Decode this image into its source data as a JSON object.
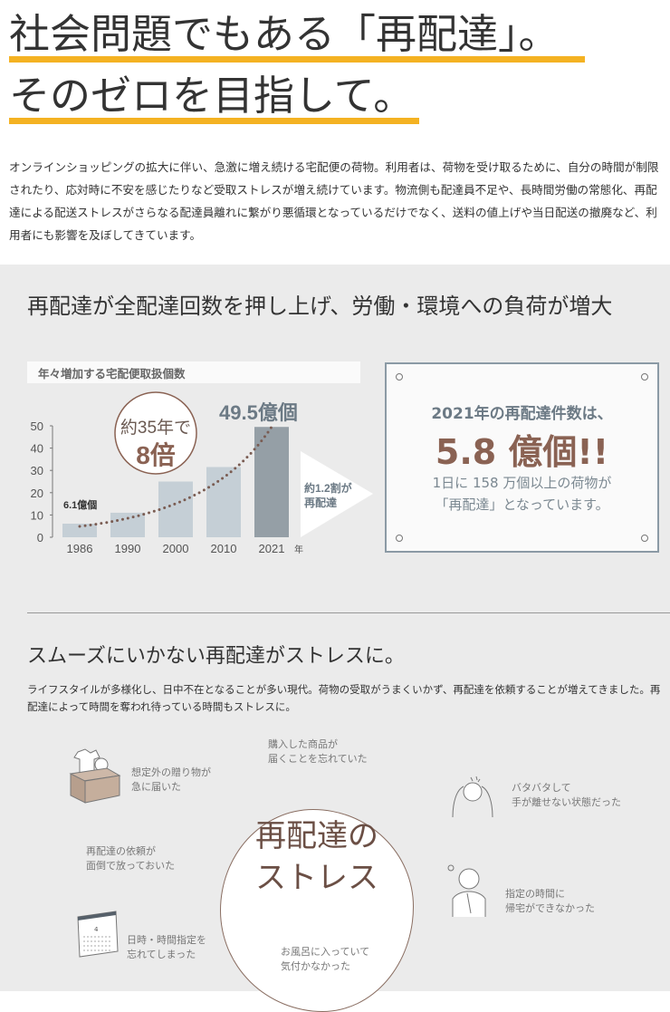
{
  "headline": {
    "line1": "社会問題でもある「再配達」。",
    "line2": "そのゼロを目指して。",
    "accent": "#f4b222"
  },
  "intro": "オンラインショッピングの拡大に伴い、急激に増え続ける宅配便の荷物。利用者は、荷物を受け取るために、自分の時間が制限されたり、応対時に不安を感じたりなど受取ストレスが増え続けています。物流側も配達員不足や、長時間労働の常態化、再配達による配送ストレスがさらなる配達員離れに繋がり悪循環となっているだけでなく、送料の値上げや当日配送の撤廃など、利用者にも影響を及ぼしてきています。",
  "section1": {
    "title": "再配達が全配達回数を押し上げ、労働・環境への負荷が増大",
    "callout": {
      "line1": "約35年で",
      "line2": "8倍"
    },
    "first_label": "6.1億個",
    "last_label": "49.5億個",
    "arrow_text": {
      "line1": "約1.2割が",
      "line2": "再配達"
    },
    "box": {
      "line1": "2021年の再配達件数は、",
      "line2": "5.8 億個!!",
      "line3": "1日に 158 万個以上の荷物が",
      "line4": "「再配達」となっています。"
    }
  },
  "chart_data": {
    "type": "bar",
    "title": "年々増加する宅配便取扱個数",
    "categories": [
      "1986",
      "1990",
      "2000",
      "2010",
      "2021"
    ],
    "values": [
      6.1,
      11,
      25,
      31.5,
      49.5
    ],
    "xlabel": "年",
    "ylabel": "",
    "ylim": [
      0,
      50
    ],
    "yticks": [
      0,
      10,
      20,
      30,
      40,
      50
    ],
    "grid": false,
    "colors": {
      "bar": "#c5cfd6",
      "highlight": "#959fa6",
      "trend": "#7a5c52"
    }
  },
  "section2": {
    "title": "スムーズにいかない再配達がストレスに。",
    "text": "ライフスタイルが多様化し、日中不在となることが多い現代。荷物の受取がうまくいかず、再配達を依頼することが増えてきました。再配達によって時間を奪われ待っている時間もストレスに。",
    "center": {
      "line1": "再配達の",
      "line2": "ストレス"
    },
    "reasons": [
      {
        "l1": "想定外の贈り物が",
        "l2": "急に届いた",
        "icon": "gift-box-icon"
      },
      {
        "l1": "購入した商品が",
        "l2": "届くことを忘れていた"
      },
      {
        "l1": "バタバタして",
        "l2": "手が離せない状態だった",
        "icon": "busy-person-icon"
      },
      {
        "l1": "再配達の依頼が",
        "l2": "面倒で放っておいた"
      },
      {
        "l1": "指定の時間に",
        "l2": "帰宅ができなかった",
        "icon": "worried-person-icon"
      },
      {
        "l1": "日時・時間指定を",
        "l2": "忘れてしまった",
        "icon": "calendar-icon"
      },
      {
        "l1": "お風呂に入っていて",
        "l2": "気付かなかった"
      }
    ]
  }
}
